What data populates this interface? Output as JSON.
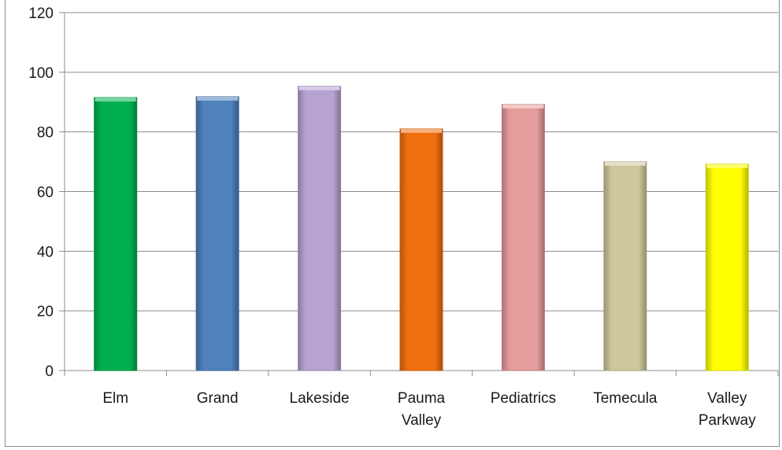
{
  "chart_data": {
    "type": "bar",
    "title": "",
    "xlabel": "",
    "ylabel": "",
    "ylim": [
      0,
      120
    ],
    "yticks": [
      0,
      20,
      40,
      60,
      80,
      100,
      120
    ],
    "grid": true,
    "legend": "none",
    "categories": [
      [
        "Elm"
      ],
      [
        "Grand"
      ],
      [
        "Lakeside"
      ],
      [
        "Pauma",
        "Valley"
      ],
      [
        "Pediatrics"
      ],
      [
        "Temecula"
      ],
      [
        "Valley",
        "Parkway"
      ]
    ],
    "values": [
      91.5,
      91.8,
      95.3,
      81.0,
      89.2,
      70.0,
      69.2
    ],
    "colors": [
      "#00b050",
      "#4f81bd",
      "#b7a3d1",
      "#f07010",
      "#e59c9a",
      "#cfc79c",
      "#ffff00"
    ]
  }
}
